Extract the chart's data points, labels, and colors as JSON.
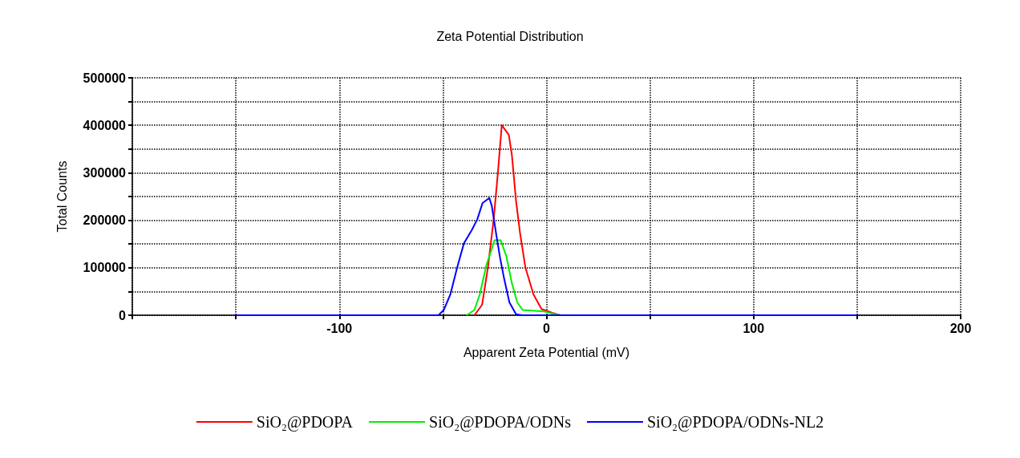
{
  "chart_data": {
    "type": "line",
    "title": "Zeta Potential Distribution",
    "xlabel": "Apparent Zeta Potential (mV)",
    "ylabel": "Total Counts",
    "xlim": [
      -200,
      200
    ],
    "ylim": [
      0,
      500000
    ],
    "xticks": [
      {
        "value": -200,
        "label": null
      },
      {
        "value": -150,
        "label": null
      },
      -100,
      {
        "value": -50,
        "label": null
      },
      0,
      {
        "value": 50,
        "label": null
      },
      100,
      {
        "value": 150,
        "label": null
      },
      200
    ],
    "yticks": [
      0,
      {
        "value": 50000,
        "label": null
      },
      100000,
      {
        "value": 150000,
        "label": null
      },
      200000,
      {
        "value": 250000,
        "label": null
      },
      300000,
      {
        "value": 350000,
        "label": null
      },
      400000,
      {
        "value": 450000,
        "label": null
      },
      500000
    ],
    "grid": true,
    "legend": "bottom",
    "marker": "none",
    "line_style": "solid",
    "series": [
      {
        "name": "SiO₂@PDOPA",
        "color": "#ff0000",
        "x": [
          -34.8,
          -31.1,
          -28.3,
          -25.5,
          -23.4,
          -21.6,
          -18.2,
          -16.7,
          -14.7,
          -12.8,
          -10.2,
          -6.3,
          -2.4,
          2.7,
          6.6
        ],
        "values": [
          0,
          22000,
          100000,
          202000,
          303000,
          400000,
          380000,
          337000,
          241000,
          174000,
          101000,
          44000,
          13000,
          5000,
          0
        ]
      },
      {
        "name": "SiO₂@PDOPA/ODNs",
        "color": "#00ee00",
        "x": [
          -38.6,
          -34.8,
          -32.2,
          -29,
          -26.4,
          -25.1,
          -22.1,
          -19.3,
          -16.7,
          -14.1,
          -11.5,
          -1.2,
          4,
          7
        ],
        "values": [
          0,
          11000,
          44000,
          106000,
          140000,
          158000,
          158000,
          123000,
          67000,
          27000,
          11000,
          8000,
          2000,
          0
        ]
      },
      {
        "name": "SiO₂@PDOPA/ODNs-NL2",
        "color": "#0000ff",
        "x": [
          -150,
          -52.2,
          -49.6,
          -46.4,
          -43.1,
          -39.9,
          -36,
          -33.4,
          -30.9,
          -27.6,
          -26.4,
          -24.4,
          -22.5,
          -20.5,
          -17.9,
          -14.7,
          -12,
          150
        ],
        "values": [
          0,
          0,
          11000,
          44000,
          101000,
          151000,
          180000,
          202000,
          236000,
          247000,
          230000,
          174000,
          123000,
          78000,
          27000,
          2000,
          0,
          0
        ]
      }
    ]
  }
}
